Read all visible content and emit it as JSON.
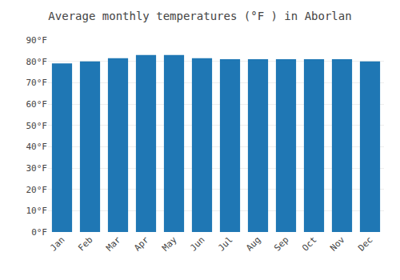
{
  "chart_data": {
    "type": "bar",
    "title": "Average monthly temperatures (°F ) in Aborlan",
    "categories": [
      "Jan",
      "Feb",
      "Mar",
      "Apr",
      "May",
      "Jun",
      "Jul",
      "Aug",
      "Sep",
      "Oct",
      "Nov",
      "Dec"
    ],
    "values": [
      79.0,
      80.0,
      81.5,
      83.0,
      83.0,
      81.5,
      81.0,
      81.0,
      81.0,
      81.0,
      81.0,
      80.0
    ],
    "ylim": [
      0,
      90
    ],
    "yticks": [
      {
        "value": 0,
        "label": "0°F"
      },
      {
        "value": 10,
        "label": "10°F"
      },
      {
        "value": 20,
        "label": "20°F"
      },
      {
        "value": 30,
        "label": "30°F"
      },
      {
        "value": 40,
        "label": "40°F"
      },
      {
        "value": 50,
        "label": "50°F"
      },
      {
        "value": 60,
        "label": "60°F"
      },
      {
        "value": 70,
        "label": "70°F"
      },
      {
        "value": 80,
        "label": "80°F"
      },
      {
        "value": 90,
        "label": "90°F"
      }
    ],
    "grid": true
  }
}
